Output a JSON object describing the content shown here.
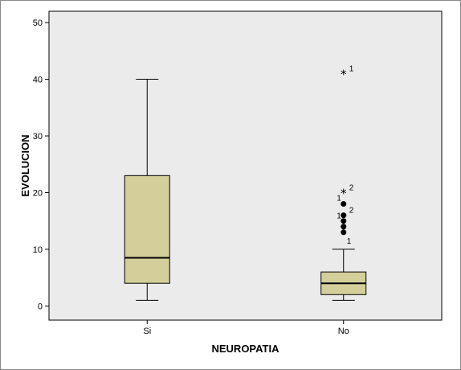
{
  "chart_data": {
    "type": "boxplot",
    "xlabel": "NEUROPATIA",
    "ylabel": "EVOLUCION",
    "categories": [
      "Si",
      "No"
    ],
    "ylim": [
      -2.5,
      52
    ],
    "yticks": [
      0,
      10,
      20,
      30,
      40,
      50
    ],
    "box_color": "#d4ce9a",
    "plot_background": "#ebebeb",
    "boxes": [
      {
        "category": "Si",
        "min": 1,
        "q1": 4,
        "median": 8.5,
        "q3": 23,
        "max": 40,
        "outliers": []
      },
      {
        "category": "No",
        "min": 1,
        "q1": 2,
        "median": 4,
        "q3": 6,
        "max": 10,
        "outliers": [
          {
            "value": 13,
            "marker": "circle",
            "label": "1"
          },
          {
            "value": 14,
            "marker": "circle",
            "label": ""
          },
          {
            "value": 15,
            "marker": "circle",
            "label": "1"
          },
          {
            "value": 16,
            "marker": "circle",
            "label": "2"
          },
          {
            "value": 18,
            "marker": "circle",
            "label": "1"
          },
          {
            "value": 20,
            "marker": "star",
            "label": "2"
          },
          {
            "value": 41,
            "marker": "star",
            "label": "1"
          }
        ]
      }
    ]
  }
}
